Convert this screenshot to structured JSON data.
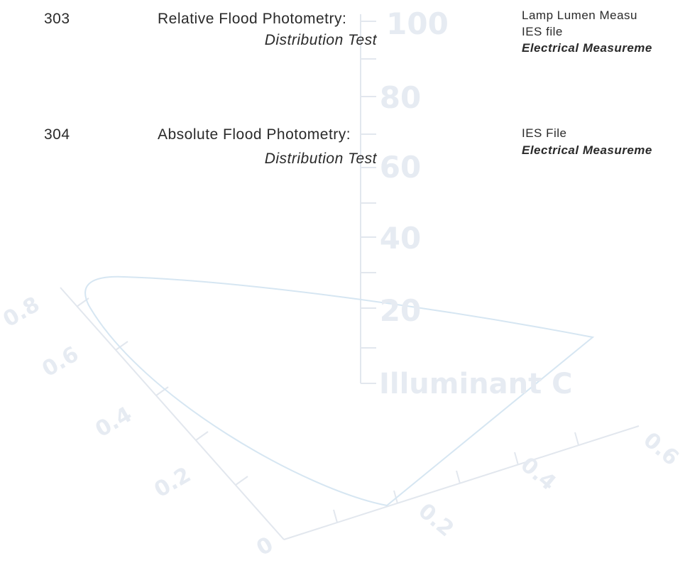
{
  "rows": [
    {
      "number": "303",
      "title": "Relative Flood Photometry:",
      "subtitle": "Distribution Test",
      "outputs": [
        "Lamp Lumen Measu",
        "IES file"
      ],
      "emphasis": "Electrical Measureme"
    },
    {
      "number": "304",
      "title": "Absolute Flood Photometry:",
      "subtitle": "Distribution Test",
      "outputs": [
        "IES File"
      ],
      "emphasis": "Electrical Measureme"
    }
  ],
  "watermark": {
    "vertical_labels": [
      "100",
      "80",
      "60",
      "40",
      "20"
    ],
    "illuminant": "Illuminant C",
    "left_labels": [
      "0.8",
      "0.6",
      "0.4",
      "0.2",
      "0"
    ],
    "right_labels": [
      "0.2",
      "0.4",
      "0.6"
    ]
  }
}
